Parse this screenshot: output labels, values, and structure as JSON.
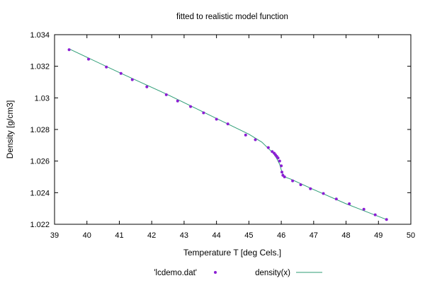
{
  "chart_data": {
    "type": "scatter",
    "title": "fitted to realistic model function",
    "xlabel": "Temperature T  [deg Cels.]",
    "ylabel": "Density [g/cm3]",
    "xlim": [
      39,
      50
    ],
    "ylim": [
      1.022,
      1.034
    ],
    "x_ticks": [
      39,
      40,
      41,
      42,
      43,
      44,
      45,
      46,
      47,
      48,
      49,
      50
    ],
    "x_tick_labels": [
      "39",
      "40",
      "41",
      "42",
      "43",
      "44",
      "45",
      "46",
      "47",
      "48",
      "49",
      "50"
    ],
    "y_ticks": [
      1.022,
      1.024,
      1.026,
      1.028,
      1.03,
      1.032,
      1.034
    ],
    "y_tick_labels": [
      "1.022",
      "1.024",
      "1.026",
      "1.028",
      "1.03",
      "1.032",
      "1.034"
    ],
    "grid": false,
    "legend_position": "bottom",
    "series": [
      {
        "name": "'lcdemo.dat'",
        "kind": "points",
        "color": "#8b1fd3",
        "x": [
          39.45,
          40.05,
          40.6,
          41.05,
          41.4,
          41.85,
          42.45,
          42.8,
          43.2,
          43.6,
          44.0,
          44.35,
          44.9,
          45.2,
          45.6,
          45.72,
          45.78,
          45.82,
          45.86,
          45.9,
          45.95,
          46.0,
          46.02,
          46.05,
          46.1,
          46.35,
          46.6,
          46.9,
          47.3,
          47.7,
          48.1,
          48.55,
          48.9,
          49.25
        ],
        "y": [
          1.03305,
          1.03245,
          1.03195,
          1.03155,
          1.03115,
          1.0307,
          1.0302,
          1.0298,
          1.02945,
          1.02905,
          1.02865,
          1.02835,
          1.02765,
          1.02735,
          1.02685,
          1.0266,
          1.0265,
          1.0264,
          1.0263,
          1.0262,
          1.026,
          1.0257,
          1.0253,
          1.0251,
          1.025,
          1.02475,
          1.0245,
          1.02425,
          1.02395,
          1.0236,
          1.0233,
          1.02295,
          1.0226,
          1.0223
        ]
      },
      {
        "name": "density(x)",
        "kind": "line",
        "color": "#2e9e76",
        "x": [
          39.45,
          41.0,
          42.5,
          44.0,
          45.0,
          45.4,
          45.6,
          45.75,
          45.85,
          45.95,
          46.02,
          46.1,
          46.3,
          47.0,
          48.0,
          49.25
        ],
        "y": [
          1.0331,
          1.0316,
          1.0302,
          1.0287,
          1.0277,
          1.0272,
          1.0268,
          1.0265,
          1.0262,
          1.0258,
          1.0253,
          1.025,
          1.02485,
          1.0242,
          1.0233,
          1.0223
        ]
      }
    ]
  }
}
